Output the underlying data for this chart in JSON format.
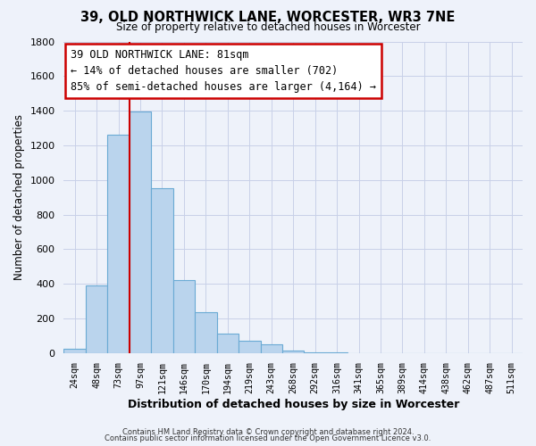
{
  "title": "39, OLD NORTHWICK LANE, WORCESTER, WR3 7NE",
  "subtitle": "Size of property relative to detached houses in Worcester",
  "xlabel": "Distribution of detached houses by size in Worcester",
  "ylabel": "Number of detached properties",
  "bar_labels": [
    "24sqm",
    "48sqm",
    "73sqm",
    "97sqm",
    "121sqm",
    "146sqm",
    "170sqm",
    "194sqm",
    "219sqm",
    "243sqm",
    "268sqm",
    "292sqm",
    "316sqm",
    "341sqm",
    "365sqm",
    "389sqm",
    "414sqm",
    "438sqm",
    "462sqm",
    "487sqm",
    "511sqm"
  ],
  "bar_values": [
    25,
    390,
    1260,
    1395,
    950,
    420,
    235,
    110,
    70,
    50,
    15,
    5,
    2,
    0,
    0,
    0,
    0,
    0,
    0,
    0,
    0
  ],
  "bar_color": "#bad4ed",
  "bar_edge_color": "#6aaad4",
  "vline_color": "#cc0000",
  "vline_pos": 2.5,
  "ylim": [
    0,
    1800
  ],
  "yticks": [
    0,
    200,
    400,
    600,
    800,
    1000,
    1200,
    1400,
    1600,
    1800
  ],
  "annotation_title": "39 OLD NORTHWICK LANE: 81sqm",
  "annotation_line1": "← 14% of detached houses are smaller (702)",
  "annotation_line2": "85% of semi-detached houses are larger (4,164) →",
  "grid_color": "#c8d0e8",
  "bg_color": "#eef2fa",
  "footer1": "Contains HM Land Registry data © Crown copyright and database right 2024.",
  "footer2": "Contains public sector information licensed under the Open Government Licence v3.0."
}
